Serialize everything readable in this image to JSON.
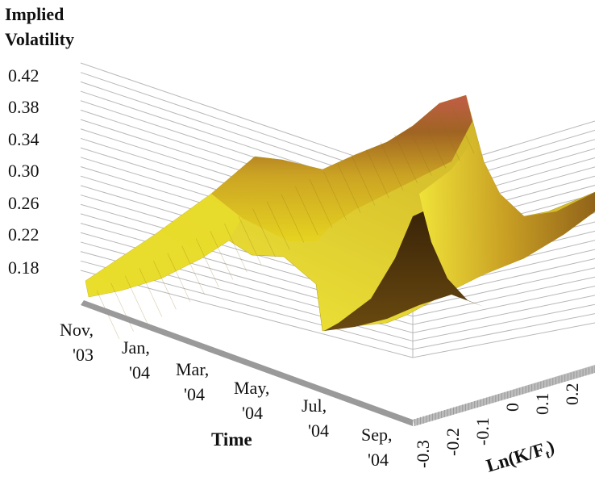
{
  "chart_data": {
    "type": "surface",
    "zlabel_lines": [
      "Implied",
      "Volatility"
    ],
    "xlabel": "Time",
    "ylabel_main": "Ln(K/F",
    "ylabel_sub": "t",
    "ylabel_close": ")",
    "z_ticks": [
      "0.42",
      "0.38",
      "0.34",
      "0.30",
      "0.26",
      "0.22",
      "0.18"
    ],
    "zlim": [
      0.18,
      0.42
    ],
    "time_ticks": [
      {
        "l1": "Nov,",
        "l2": "'03"
      },
      {
        "l1": "Jan,",
        "l2": "'04"
      },
      {
        "l1": "Mar,",
        "l2": "'04"
      },
      {
        "l1": "May,",
        "l2": "'04"
      },
      {
        "l1": "Jul,",
        "l2": "'04"
      },
      {
        "l1": "Sep,",
        "l2": "'04"
      }
    ],
    "moneyness_ticks": [
      "-0.3",
      "-0.2",
      "-0.1",
      "0",
      "0.1",
      "0.2"
    ],
    "moneyness_range": [
      -0.3,
      0.25
    ],
    "grid": true,
    "colormap": "yellow-to-red (autumn), shaded",
    "atm_volatility_path": [
      {
        "t": "Nov, '03",
        "v": 0.18
      },
      {
        "t": "Jan, '04",
        "v": 0.255
      },
      {
        "t": "Mar, '04",
        "v": 0.265
      },
      {
        "t": "May, '04",
        "v": 0.285
      },
      {
        "t": "Jul, '04",
        "v": 0.33
      },
      {
        "t": "Sep, '04",
        "v": 0.4
      }
    ]
  }
}
